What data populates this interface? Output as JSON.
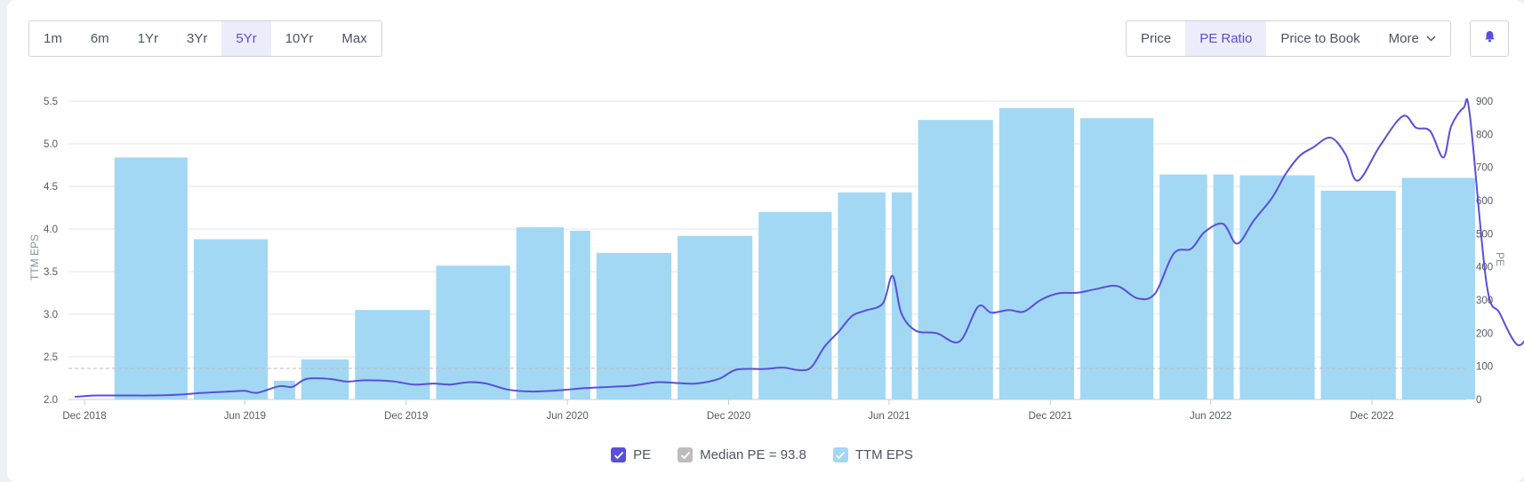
{
  "range_tabs": [
    "1m",
    "6m",
    "1Yr",
    "3Yr",
    "5Yr",
    "10Yr",
    "Max"
  ],
  "active_range": "5Yr",
  "metric_tabs": {
    "price": "Price",
    "pe": "PE Ratio",
    "ptb": "Price to Book",
    "more": "More"
  },
  "active_metric": "PE Ratio",
  "icons": {
    "bell": "bell-icon",
    "chevron": "chevron-down-icon",
    "check": "check-icon"
  },
  "colors": {
    "pe_line": "#5a4fd8",
    "eps_bar": "#a2d8f4",
    "median": "#bdbdbd",
    "accent": "#5a4fcf"
  },
  "legend": {
    "pe": "PE",
    "median": "Median PE = 93.8",
    "eps": "TTM EPS"
  },
  "chart_data": {
    "type": "bar+line",
    "x_ticks": [
      "Dec 2018",
      "Jun 2019",
      "Dec 2019",
      "Jun 2020",
      "Dec 2020",
      "Jun 2021",
      "Dec 2021",
      "Jun 2022",
      "Dec 2022"
    ],
    "y_left": {
      "label": "TTM EPS",
      "ticks": [
        "2.0",
        "2.5",
        "3.0",
        "3.5",
        "4.0",
        "4.5",
        "5.0",
        "5.5"
      ],
      "range": [
        2.0,
        5.5
      ]
    },
    "y_right": {
      "label": "PE",
      "ticks": [
        "0",
        "100",
        "200",
        "300",
        "400",
        "500",
        "600",
        "700",
        "800",
        "900"
      ],
      "range": [
        0,
        900
      ]
    },
    "median_pe": 93.8,
    "grid": true,
    "legend_position": "bottom-center",
    "eps_bars": [
      {
        "start": "2019-01-01",
        "end": "2019-03-31",
        "value": 4.84
      },
      {
        "start": "2019-04-01",
        "end": "2019-06-30",
        "value": 3.88
      },
      {
        "start": "2019-07-01",
        "end": "2019-07-31",
        "value": 2.22
      },
      {
        "start": "2019-08-01",
        "end": "2019-09-30",
        "value": 2.47
      },
      {
        "start": "2019-10-01",
        "end": "2019-12-31",
        "value": 3.05
      },
      {
        "start": "2020-01-01",
        "end": "2020-03-31",
        "value": 3.57
      },
      {
        "start": "2020-04-01",
        "end": "2020-05-31",
        "value": 4.02
      },
      {
        "start": "2020-06-01",
        "end": "2020-06-30",
        "value": 3.98
      },
      {
        "start": "2020-07-01",
        "end": "2020-09-30",
        "value": 3.72
      },
      {
        "start": "2020-10-01",
        "end": "2020-12-31",
        "value": 3.92
      },
      {
        "start": "2021-01-01",
        "end": "2021-03-31",
        "value": 4.2
      },
      {
        "start": "2021-04-01",
        "end": "2021-05-31",
        "value": 4.43
      },
      {
        "start": "2021-06-01",
        "end": "2021-06-30",
        "value": 4.43
      },
      {
        "start": "2021-07-01",
        "end": "2021-09-30",
        "value": 5.28
      },
      {
        "start": "2021-10-01",
        "end": "2021-12-31",
        "value": 5.42
      },
      {
        "start": "2022-01-01",
        "end": "2022-03-31",
        "value": 5.3
      },
      {
        "start": "2022-04-01",
        "end": "2022-05-31",
        "value": 4.64
      },
      {
        "start": "2022-06-01",
        "end": "2022-06-30",
        "value": 4.64
      },
      {
        "start": "2022-07-01",
        "end": "2022-09-30",
        "value": 4.63
      },
      {
        "start": "2022-10-01",
        "end": "2022-12-31",
        "value": 4.45
      },
      {
        "start": "2023-01-01",
        "end": "2023-03-31",
        "value": 4.6
      }
    ],
    "pe_series": [
      [
        "2018-11-20",
        8
      ],
      [
        "2018-12-01",
        10
      ],
      [
        "2018-12-15",
        12
      ],
      [
        "2019-01-15",
        12
      ],
      [
        "2019-02-15",
        12
      ],
      [
        "2019-03-15",
        14
      ],
      [
        "2019-04-15",
        20
      ],
      [
        "2019-05-15",
        24
      ],
      [
        "2019-06-01",
        26
      ],
      [
        "2019-06-15",
        20
      ],
      [
        "2019-07-10",
        40
      ],
      [
        "2019-07-25",
        38
      ],
      [
        "2019-08-10",
        62
      ],
      [
        "2019-09-05",
        62
      ],
      [
        "2019-09-25",
        54
      ],
      [
        "2019-10-15",
        58
      ],
      [
        "2019-11-15",
        55
      ],
      [
        "2019-12-10",
        45
      ],
      [
        "2020-01-01",
        48
      ],
      [
        "2020-01-20",
        45
      ],
      [
        "2020-02-10",
        52
      ],
      [
        "2020-03-01",
        48
      ],
      [
        "2020-03-25",
        30
      ],
      [
        "2020-04-20",
        24
      ],
      [
        "2020-05-20",
        27
      ],
      [
        "2020-06-20",
        34
      ],
      [
        "2020-07-20",
        38
      ],
      [
        "2020-08-15",
        42
      ],
      [
        "2020-09-10",
        52
      ],
      [
        "2020-10-01",
        50
      ],
      [
        "2020-10-25",
        48
      ],
      [
        "2020-11-20",
        62
      ],
      [
        "2020-12-10",
        90
      ],
      [
        "2021-01-10",
        92
      ],
      [
        "2021-02-01",
        96
      ],
      [
        "2021-02-20",
        88
      ],
      [
        "2021-03-05",
        98
      ],
      [
        "2021-03-20",
        160
      ],
      [
        "2021-04-05",
        205
      ],
      [
        "2021-04-20",
        252
      ],
      [
        "2021-05-05",
        268
      ],
      [
        "2021-05-25",
        290
      ],
      [
        "2021-06-05",
        373
      ],
      [
        "2021-06-15",
        260
      ],
      [
        "2021-07-01",
        208
      ],
      [
        "2021-07-25",
        200
      ],
      [
        "2021-08-20",
        175
      ],
      [
        "2021-09-10",
        280
      ],
      [
        "2021-09-25",
        262
      ],
      [
        "2021-10-15",
        270
      ],
      [
        "2021-11-01",
        265
      ],
      [
        "2021-11-20",
        300
      ],
      [
        "2021-12-10",
        320
      ],
      [
        "2022-01-01",
        322
      ],
      [
        "2022-01-20",
        332
      ],
      [
        "2022-02-15",
        342
      ],
      [
        "2022-03-10",
        305
      ],
      [
        "2022-03-30",
        320
      ],
      [
        "2022-04-20",
        440
      ],
      [
        "2022-05-10",
        455
      ],
      [
        "2022-05-25",
        505
      ],
      [
        "2022-06-15",
        530
      ],
      [
        "2022-07-01",
        470
      ],
      [
        "2022-07-20",
        540
      ],
      [
        "2022-08-10",
        610
      ],
      [
        "2022-08-25",
        680
      ],
      [
        "2022-09-10",
        735
      ],
      [
        "2022-09-25",
        760
      ],
      [
        "2022-10-15",
        790
      ],
      [
        "2022-11-01",
        740
      ],
      [
        "2022-11-15",
        660
      ],
      [
        "2022-12-10",
        765
      ],
      [
        "2023-01-05",
        855
      ],
      [
        "2023-01-20",
        820
      ],
      [
        "2023-02-05",
        810
      ],
      [
        "2023-02-20",
        730
      ],
      [
        "2023-03-01",
        825
      ],
      [
        "2023-03-15",
        880
      ],
      [
        "2023-03-22",
        860
      ],
      [
        "2023-04-10",
        350
      ],
      [
        "2023-04-25",
        260
      ],
      [
        "2023-05-15",
        165
      ],
      [
        "2023-05-30",
        200
      ],
      [
        "2023-06-08",
        196
      ]
    ]
  }
}
